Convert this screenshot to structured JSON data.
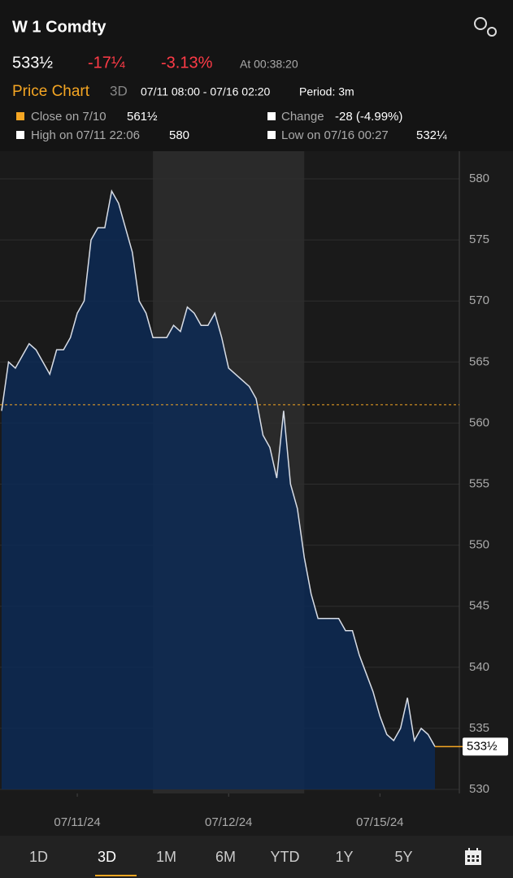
{
  "header": {
    "title": "W 1 Comdty",
    "last": "533½",
    "change": "-17¼",
    "change_pct": "-3.13%",
    "time": "At 00:38:20"
  },
  "chart_header": {
    "label": "Price Chart",
    "range_tab": "3D",
    "period_range": "07/11 08:00 - 07/16 02:20",
    "period": "Period: 3m"
  },
  "stats": [
    {
      "label": "Close on 7/10",
      "value": "561½"
    },
    {
      "label": "Change",
      "value": "-28 (-4.99%)"
    },
    {
      "label": "High on 07/11 22:06",
      "value": "580"
    },
    {
      "label": "Low on 07/16 00:27",
      "value": "532¼"
    }
  ],
  "chart_data": {
    "type": "area",
    "color": "#d8dde6",
    "fill": "#0d2a55",
    "values": [
      561,
      565,
      564.5,
      565.5,
      566.5,
      566,
      565,
      564,
      566,
      566,
      567,
      569,
      570,
      575,
      576,
      576,
      579,
      578,
      576,
      574,
      570,
      569,
      567,
      567,
      567,
      568,
      567.5,
      569.5,
      569,
      568,
      568,
      569,
      567,
      564.5,
      564,
      563.5,
      563,
      562,
      559,
      558,
      555.5,
      561,
      555,
      553,
      549,
      546,
      544,
      544,
      544,
      544,
      543,
      543,
      541,
      539.5,
      538,
      536,
      534.5,
      534,
      535,
      537.5,
      534,
      535,
      534.5,
      533.5
    ],
    "ylim": [
      530,
      580
    ],
    "yticks": [
      530,
      535,
      540,
      545,
      550,
      555,
      560,
      565,
      570,
      575,
      580
    ],
    "xticks": [
      {
        "value": 11,
        "label": "07/11/24"
      },
      {
        "value": 33,
        "label": "07/12/24"
      },
      {
        "value": 55,
        "label": "07/15/24"
      }
    ],
    "shaded_range": [
      22,
      44
    ],
    "reference_line": 561.5,
    "grid": true
  },
  "tabs": [
    "1D",
    "3D",
    "1M",
    "6M",
    "YTD",
    "1Y",
    "5Y"
  ],
  "active_tab": 1
}
